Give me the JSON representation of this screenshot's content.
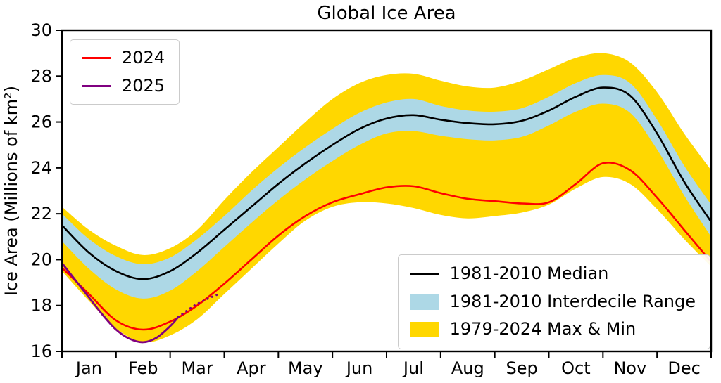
{
  "chart_data": {
    "type": "line",
    "title": "Global Ice Area",
    "xlabel": "",
    "ylabel": "Ice Area (Millions of km²)",
    "ylim": [
      16,
      30
    ],
    "xlim_months": [
      0,
      12
    ],
    "grid": false,
    "y_ticks": [
      16,
      18,
      20,
      22,
      24,
      26,
      28,
      30
    ],
    "x_ticklabels": [
      "Jan",
      "Feb",
      "Mar",
      "Apr",
      "May",
      "Jun",
      "Jul",
      "Aug",
      "Sep",
      "Oct",
      "Nov",
      "Dec"
    ],
    "x_months": [
      0,
      0.5,
      1,
      1.5,
      2,
      2.5,
      3,
      3.5,
      4,
      4.5,
      5,
      5.5,
      6,
      6.5,
      7,
      7.5,
      8,
      8.5,
      9,
      9.5,
      10,
      10.5,
      11,
      11.5,
      12
    ],
    "series": [
      {
        "name": "1979-2024 Max",
        "values": [
          22.3,
          21.3,
          20.6,
          20.2,
          20.5,
          21.3,
          22.6,
          23.8,
          24.9,
          26.0,
          27.0,
          27.7,
          28.05,
          28.1,
          27.8,
          27.55,
          27.5,
          27.8,
          28.3,
          28.8,
          29.0,
          28.6,
          27.3,
          25.5,
          23.9
        ]
      },
      {
        "name": "1979-2024 Min",
        "values": [
          19.5,
          18.2,
          17.0,
          16.4,
          16.7,
          17.4,
          18.5,
          19.6,
          20.7,
          21.7,
          22.3,
          22.5,
          22.45,
          22.25,
          21.95,
          21.8,
          21.9,
          22.05,
          22.4,
          23.1,
          23.6,
          23.3,
          22.2,
          20.9,
          19.7
        ]
      },
      {
        "name": "1981-2010 Interdecile Top",
        "values": [
          22.0,
          20.9,
          20.15,
          19.8,
          20.1,
          20.9,
          21.9,
          23.0,
          24.0,
          24.9,
          25.7,
          26.4,
          26.85,
          27.0,
          26.7,
          26.5,
          26.45,
          26.6,
          27.1,
          27.7,
          28.05,
          27.7,
          26.1,
          24.1,
          22.4
        ]
      },
      {
        "name": "1981-2010 Interdecile Bottom",
        "values": [
          20.8,
          19.6,
          18.7,
          18.3,
          18.65,
          19.5,
          20.55,
          21.6,
          22.6,
          23.5,
          24.3,
          25.0,
          25.5,
          25.6,
          25.4,
          25.25,
          25.2,
          25.35,
          25.85,
          26.45,
          26.8,
          26.4,
          24.8,
          22.8,
          21.0
        ]
      },
      {
        "name": "1981-2010 Median",
        "values": [
          21.5,
          20.3,
          19.5,
          19.15,
          19.5,
          20.3,
          21.3,
          22.3,
          23.3,
          24.2,
          25.0,
          25.7,
          26.15,
          26.3,
          26.1,
          25.95,
          25.9,
          26.05,
          26.5,
          27.1,
          27.5,
          27.15,
          25.5,
          23.4,
          21.65
        ]
      },
      {
        "name": "2024",
        "values": [
          19.65,
          18.5,
          17.35,
          16.95,
          17.3,
          18.0,
          18.95,
          20.0,
          21.05,
          21.9,
          22.5,
          22.85,
          23.15,
          23.2,
          22.9,
          22.65,
          22.55,
          22.45,
          22.5,
          23.3,
          24.2,
          23.9,
          22.7,
          21.3,
          19.9
        ]
      }
    ],
    "series_2025": {
      "name": "2025",
      "solid_x": [
        0,
        0.25,
        0.5,
        0.75,
        1.0,
        1.25,
        1.5,
        1.75,
        2.0,
        2.15
      ],
      "solid_values": [
        19.85,
        19.1,
        18.35,
        17.6,
        16.95,
        16.55,
        16.4,
        16.6,
        17.1,
        17.5
      ],
      "dotted_x": [
        2.15,
        2.45,
        2.7,
        2.9
      ],
      "dotted_values": [
        17.5,
        18.0,
        18.3,
        18.5
      ]
    },
    "colors": {
      "max_min_band": "#ffd700",
      "interdecile_band": "#add8e6",
      "median": "#000000",
      "y2024": "#ff0000",
      "y2025": "#800080"
    }
  },
  "legend_top": {
    "entries": [
      {
        "label": "2024",
        "color": "#ff0000",
        "swatch": "line"
      },
      {
        "label": "2025",
        "color": "#800080",
        "swatch": "line"
      }
    ]
  },
  "legend_bottom": {
    "entries": [
      {
        "label": "1981-2010 Median",
        "color": "#000000",
        "swatch": "line"
      },
      {
        "label": "1981-2010 Interdecile Range",
        "color": "#add8e6",
        "swatch": "patch"
      },
      {
        "label": "1979-2024 Max & Min",
        "color": "#ffd700",
        "swatch": "patch"
      }
    ]
  }
}
